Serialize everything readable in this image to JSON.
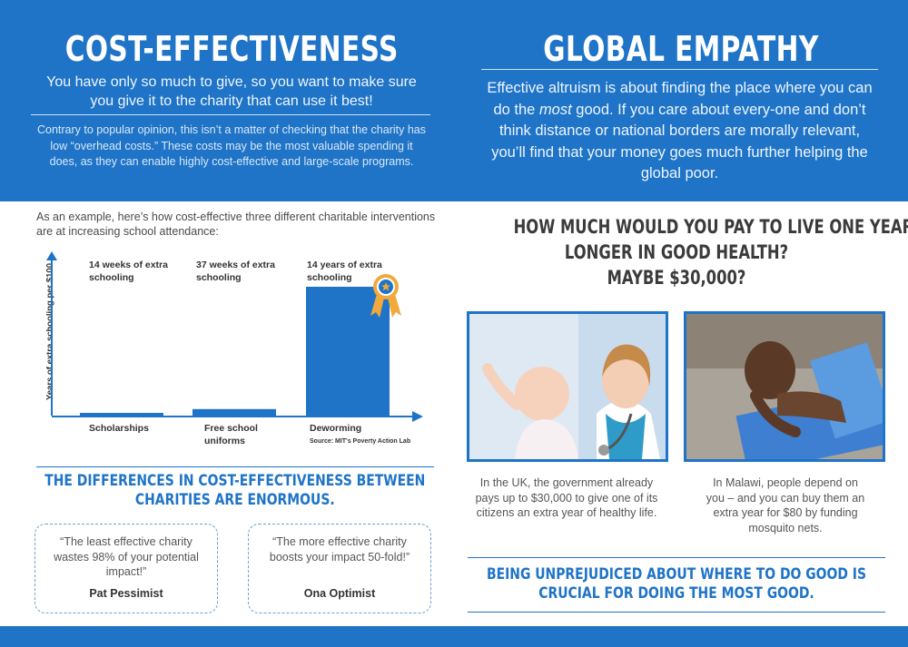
{
  "left": {
    "title": "COST-EFFECTIVENESS",
    "lead": "You have only so much to give, so you want to make sure you give it to the charity that can use it best!",
    "sub": "Contrary to popular opinion, this isn’t a matter of checking that the charity has low “overhead costs.” These costs may be the most valuable spending it does, as they can enable highly cost-effective and large-scale programs.",
    "example": "As an example, here’s how cost-effective three different charitable interventions are at increasing school attendance:",
    "differences": "THE DIFFERENCES IN COST-EFFECTIVENESS BETWEEN CHARITIES ARE ENORMOUS.",
    "quotes": [
      {
        "text": "“The least effective charity wastes 98% of your potential impact!”",
        "author": "Pat Pessimist"
      },
      {
        "text": "“The more effective charity boosts your impact 50-fold!”",
        "author": "Ona Optimist"
      }
    ]
  },
  "chart_data": {
    "type": "bar",
    "categories": [
      "Scholarships",
      "Free school uniforms",
      "Deworming"
    ],
    "bar_labels": [
      "14 weeks of extra schooling",
      "37 weeks of extra schooling",
      "14 years of extra schooling"
    ],
    "values_years": [
      0.27,
      0.71,
      14
    ],
    "ylabel": "Years of extra schooling per $100",
    "source": "Source: MIT's Poverty Action Lab",
    "bar_color": "#1f74c7",
    "highlight_icon": "award-ribbon-icon"
  },
  "right": {
    "title": "GLOBAL EMPATHY",
    "lead_before": "Effective altruism is about finding the place where you can do the ",
    "lead_em": "most",
    "lead_after": " good. If you care about every-one and don’t think distance or national borders are morally relevant, you’ll find that your money goes much further helping the global poor.",
    "question_line1": "HOW MUCH WOULD YOU PAY TO LIVE ONE YEAR",
    "question_line2": "LONGER IN GOOD HEALTH?",
    "question_line3": "MAYBE $30,000?",
    "caption_uk": "In the UK, the government already pays up to $30,000 to give one of its citizens an extra year of healthy life.",
    "caption_malawi": "In Malawi, people depend on you – and you can buy them an extra year for $80 by funding mosquito nets.",
    "unprejudiced": "BEING UNPREJUDICED ABOUT WHERE TO DO GOOD IS CRUCIAL FOR DOING THE MOST GOOD."
  },
  "colors": {
    "brand_blue": "#1f74c7",
    "medal_gold": "#f2a93b"
  }
}
